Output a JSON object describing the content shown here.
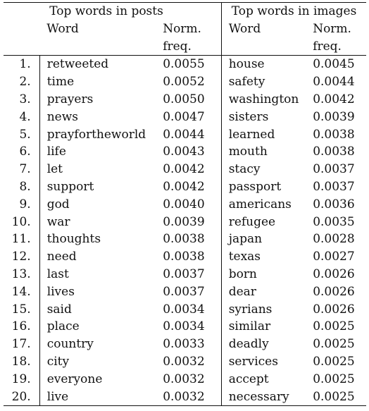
{
  "table": {
    "group_headers": [
      "Top words in posts",
      "Top words in images"
    ],
    "col_word": "Word",
    "col_freq_line1": "Norm.",
    "col_freq_line2": "freq.",
    "rows": [
      {
        "idx": "1.",
        "post_word": "retweeted",
        "post_freq": "0.0055",
        "img_word": "house",
        "img_freq": "0.0045"
      },
      {
        "idx": "2.",
        "post_word": "time",
        "post_freq": "0.0052",
        "img_word": "safety",
        "img_freq": "0.0044"
      },
      {
        "idx": "3.",
        "post_word": "prayers",
        "post_freq": "0.0050",
        "img_word": "washington",
        "img_freq": "0.0042"
      },
      {
        "idx": "4.",
        "post_word": "news",
        "post_freq": "0.0047",
        "img_word": "sisters",
        "img_freq": "0.0039"
      },
      {
        "idx": "5.",
        "post_word": "prayfortheworld",
        "post_freq": "0.0044",
        "img_word": "learned",
        "img_freq": "0.0038"
      },
      {
        "idx": "6.",
        "post_word": "life",
        "post_freq": "0.0043",
        "img_word": "mouth",
        "img_freq": "0.0038"
      },
      {
        "idx": "7.",
        "post_word": "let",
        "post_freq": "0.0042",
        "img_word": "stacy",
        "img_freq": "0.0037"
      },
      {
        "idx": "8.",
        "post_word": "support",
        "post_freq": "0.0042",
        "img_word": "passport",
        "img_freq": "0.0037"
      },
      {
        "idx": "9.",
        "post_word": "god",
        "post_freq": "0.0040",
        "img_word": "americans",
        "img_freq": "0.0036"
      },
      {
        "idx": "10.",
        "post_word": "war",
        "post_freq": "0.0039",
        "img_word": "refugee",
        "img_freq": "0.0035"
      },
      {
        "idx": "11.",
        "post_word": "thoughts",
        "post_freq": "0.0038",
        "img_word": "japan",
        "img_freq": "0.0028"
      },
      {
        "idx": "12.",
        "post_word": "need",
        "post_freq": "0.0038",
        "img_word": "texas",
        "img_freq": "0.0027"
      },
      {
        "idx": "13.",
        "post_word": "last",
        "post_freq": "0.0037",
        "img_word": "born",
        "img_freq": "0.0026"
      },
      {
        "idx": "14.",
        "post_word": "lives",
        "post_freq": "0.0037",
        "img_word": "dear",
        "img_freq": "0.0026"
      },
      {
        "idx": "15.",
        "post_word": "said",
        "post_freq": "0.0034",
        "img_word": "syrians",
        "img_freq": "0.0026"
      },
      {
        "idx": "16.",
        "post_word": "place",
        "post_freq": "0.0034",
        "img_word": "similar",
        "img_freq": "0.0025"
      },
      {
        "idx": "17.",
        "post_word": "country",
        "post_freq": "0.0033",
        "img_word": "deadly",
        "img_freq": "0.0025"
      },
      {
        "idx": "18.",
        "post_word": "city",
        "post_freq": "0.0032",
        "img_word": "services",
        "img_freq": "0.0025"
      },
      {
        "idx": "19.",
        "post_word": "everyone",
        "post_freq": "0.0032",
        "img_word": "accept",
        "img_freq": "0.0025"
      },
      {
        "idx": "20.",
        "post_word": "live",
        "post_freq": "0.0032",
        "img_word": "necessary",
        "img_freq": "0.0025"
      }
    ]
  }
}
